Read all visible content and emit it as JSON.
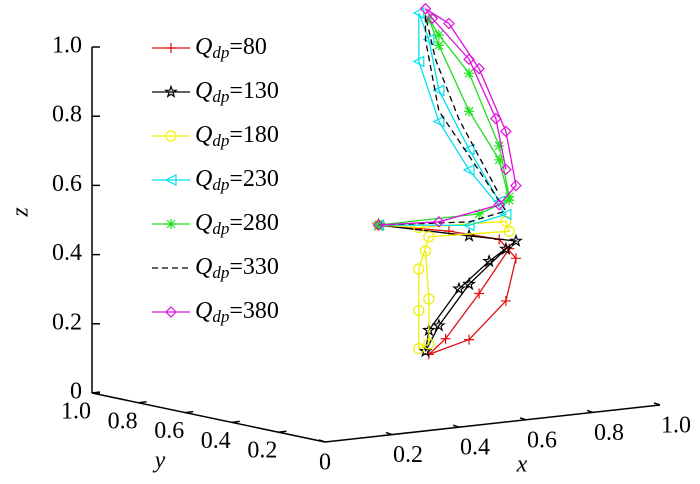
{
  "chart_data": {
    "type": "line3d",
    "x_label": "x",
    "y_label": "y",
    "z_label": "z",
    "xlim": [
      0,
      1
    ],
    "ylim": [
      0,
      1
    ],
    "zlim": [
      0,
      1
    ],
    "xticks": [
      0,
      0.2,
      0.4,
      0.6,
      0.8,
      {
        "value": 1,
        "label": "1.0"
      }
    ],
    "yticks": [
      0.2,
      0.4,
      0.6,
      0.8,
      {
        "value": 1,
        "label": "1.0"
      }
    ],
    "zticks": [
      0,
      0.2,
      0.4,
      0.6,
      0.8,
      {
        "value": 1,
        "label": "1.0"
      }
    ],
    "series": [
      {
        "name": "Qdp=80",
        "color": "#e01010",
        "marker": "plus",
        "dash": false,
        "x": [
          0.16,
          0.37,
          0.52,
          0.57,
          0.54,
          0.43,
          0.31,
          0.36,
          0.46,
          0.55
        ],
        "y": [
          0,
          0,
          0,
          0,
          0,
          0,
          0,
          0,
          0,
          0
        ],
        "z": [
          0.61,
          0.57,
          0.53,
          0.47,
          0.35,
          0.25,
          0.22,
          0.26,
          0.38,
          0.5
        ]
      },
      {
        "name": "Qdp=130",
        "color": "#000000",
        "marker": "star",
        "dash": false,
        "x": [
          0.16,
          0.43,
          0.57,
          0.49,
          0.4,
          0.31,
          0.3,
          0.34,
          0.43,
          0.54
        ],
        "y": [
          0,
          0,
          0,
          0,
          0,
          0,
          0,
          0,
          0,
          0
        ],
        "z": [
          0.61,
          0.55,
          0.52,
          0.47,
          0.4,
          0.29,
          0.23,
          0.3,
          0.41,
          0.5
        ]
      },
      {
        "name": "Qdp=180",
        "color": "#f0f000",
        "marker": "circle",
        "dash": false,
        "x": [
          0.16,
          0.28,
          0.54,
          0.55,
          0.31,
          0.28,
          0.28,
          0.28,
          0.31,
          0.31,
          0.3
        ],
        "y": [
          0,
          0,
          0,
          0,
          0,
          0,
          0,
          0,
          0,
          0,
          0
        ],
        "z": [
          0.61,
          0.59,
          0.58,
          0.55,
          0.56,
          0.47,
          0.35,
          0.24,
          0.25,
          0.38,
          0.52
        ]
      },
      {
        "name": "Qdp=230",
        "color": "#00e0f0",
        "marker": "triangle",
        "dash": false,
        "x": [
          0.16,
          0.43,
          0.54,
          0.43,
          0.34,
          0.28,
          0.28,
          0.31,
          0.34,
          0.43,
          0.52
        ],
        "y": [
          0,
          0,
          0,
          0,
          0,
          0,
          0,
          0,
          0,
          0,
          0
        ],
        "z": [
          0.61,
          0.58,
          0.6,
          0.74,
          0.89,
          1.07,
          1.21,
          1.13,
          0.98,
          0.8,
          0.64
        ]
      },
      {
        "name": "Qdp=280",
        "color": "#20e020",
        "marker": "asterisk",
        "dash": false,
        "x": [
          0.16,
          0.46,
          0.55,
          0.52,
          0.43,
          0.34,
          0.31,
          0.34,
          0.43,
          0.52,
          0.55
        ],
        "y": [
          0,
          0,
          0,
          0,
          0,
          0,
          0,
          0,
          0,
          0,
          0
        ],
        "z": [
          0.61,
          0.61,
          0.64,
          0.76,
          0.91,
          1.11,
          1.19,
          1.14,
          1.02,
          0.8,
          0.65
        ]
      },
      {
        "name": "Qdp=330",
        "color": "#000000",
        "marker": "none",
        "dash": true,
        "x": [
          0.16,
          0.43,
          0.54,
          0.45,
          0.34,
          0.3,
          0.3,
          0.33,
          0.4,
          0.52
        ],
        "y": [
          0,
          0,
          0,
          0,
          0,
          0,
          0,
          0,
          0,
          0
        ],
        "z": [
          0.61,
          0.59,
          0.61,
          0.75,
          0.92,
          1.13,
          1.2,
          1.07,
          0.89,
          0.66
        ]
      },
      {
        "name": "Qdp=380",
        "color": "#e010e0",
        "marker": "diamond",
        "dash": false,
        "x": [
          0.16,
          0.34,
          0.52,
          0.57,
          0.54,
          0.46,
          0.37,
          0.3,
          0.32,
          0.43,
          0.51,
          0.54
        ],
        "y": [
          0,
          0,
          0,
          0,
          0,
          0,
          0,
          0,
          0,
          0,
          0,
          0
        ],
        "z": [
          0.61,
          0.6,
          0.63,
          0.68,
          0.84,
          1.03,
          1.17,
          1.22,
          1.19,
          1.06,
          0.88,
          0.73
        ]
      }
    ]
  }
}
